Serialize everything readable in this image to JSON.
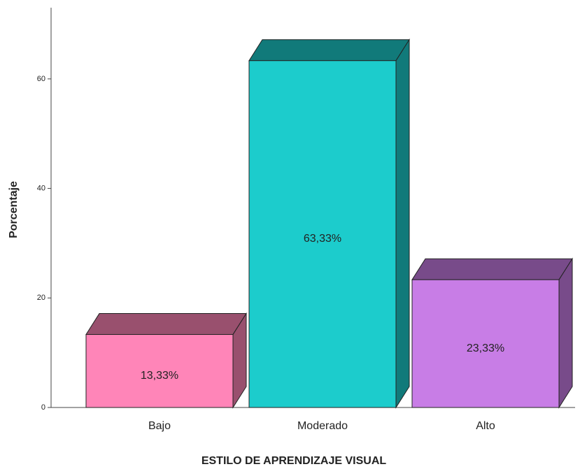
{
  "chart_data": {
    "type": "bar3d",
    "x_label": "ESTILO DE APRENDIZAJE VISUAL",
    "y_label": "Porcentaje",
    "categories": [
      "Bajo",
      "Moderado",
      "Alto"
    ],
    "values": [
      13.33,
      63.33,
      23.33
    ],
    "value_labels": [
      "13,33%",
      "63,33%",
      "23,33%"
    ],
    "colors": [
      "#ff85b8",
      "#1ccccc",
      "#c87de6"
    ],
    "ylim": [
      0,
      73
    ],
    "yticks": [
      0,
      20,
      40,
      60
    ],
    "grid": false
  }
}
